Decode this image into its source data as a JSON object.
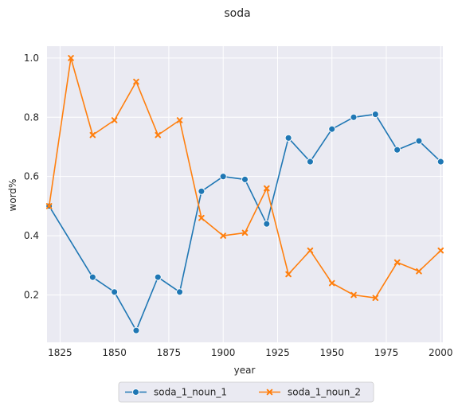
{
  "chart_data": {
    "type": "line",
    "title": "soda",
    "xlabel": "year",
    "ylabel": "word%",
    "xlim": [
      1819,
      2001
    ],
    "ylim": [
      0.04,
      1.04
    ],
    "x_ticks": [
      1825,
      1850,
      1875,
      1900,
      1925,
      1950,
      1975,
      2000
    ],
    "y_ticks": [
      0.2,
      0.4,
      0.6,
      0.8,
      1.0
    ],
    "x_tick_labels": [
      "1825",
      "1850",
      "1875",
      "1900",
      "1925",
      "1950",
      "1975",
      "2000"
    ],
    "y_tick_labels": [
      "0.2",
      "0.4",
      "0.6",
      "0.8",
      "1.0"
    ],
    "grid": true,
    "legend_position": "bottom-center",
    "series": [
      {
        "name": "soda_1_noun_1",
        "color": "#1f77b4",
        "marker": "circle",
        "x": [
          1820,
          1840,
          1850,
          1860,
          1870,
          1880,
          1890,
          1900,
          1910,
          1920,
          1930,
          1940,
          1950,
          1960,
          1970,
          1980,
          1990,
          2000
        ],
        "y": [
          0.5,
          0.26,
          0.21,
          0.08,
          0.26,
          0.21,
          0.55,
          0.6,
          0.59,
          0.44,
          0.73,
          0.65,
          0.76,
          0.8,
          0.81,
          0.69,
          0.72,
          0.65
        ]
      },
      {
        "name": "soda_1_noun_2",
        "color": "#ff7f0e",
        "marker": "x",
        "x": [
          1820,
          1830,
          1840,
          1850,
          1860,
          1870,
          1880,
          1890,
          1900,
          1910,
          1920,
          1930,
          1940,
          1950,
          1960,
          1970,
          1980,
          1990,
          2000
        ],
        "y": [
          0.5,
          1.0,
          0.74,
          0.79,
          0.92,
          0.74,
          0.79,
          0.46,
          0.4,
          0.41,
          0.56,
          0.27,
          0.35,
          0.24,
          0.2,
          0.19,
          0.31,
          0.28,
          0.35
        ]
      }
    ]
  }
}
